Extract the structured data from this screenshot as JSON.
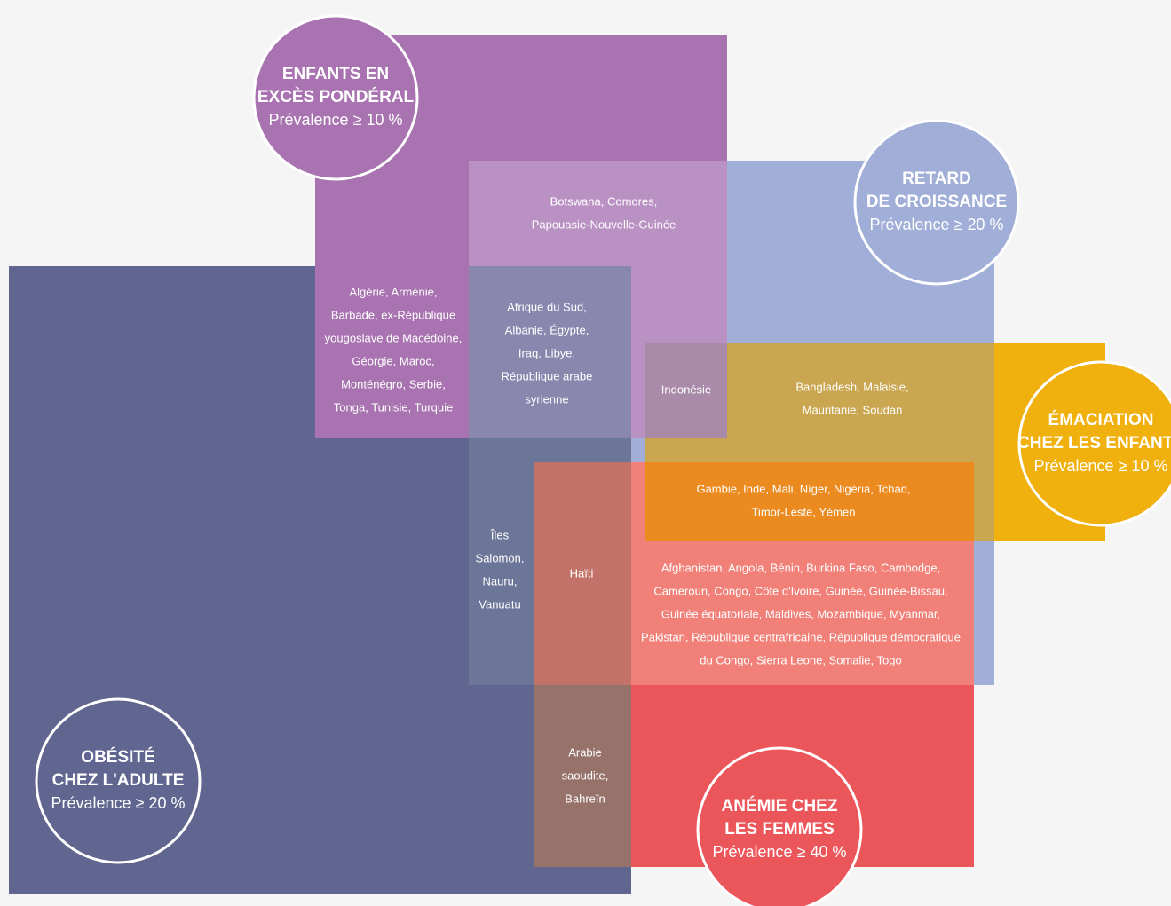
{
  "groups": [
    {
      "title_lines": [
        "ENFANTS EN",
        "EXCÈS PONDÉRAL"
      ],
      "prevalence": "Prévalence ≥ 10 %"
    },
    {
      "title_lines": [
        "RETARD",
        "DE CROISSANCE"
      ],
      "prevalence": "Prévalence ≥ 20 %"
    },
    {
      "title_lines": [
        "ÉMACIATION",
        "CHEZ LES ENFANTS"
      ],
      "prevalence": "Prévalence ≥ 10 %"
    },
    {
      "title_lines": [
        "OBÉSITÉ",
        "CHEZ L'ADULTE"
      ],
      "prevalence": "Prévalence ≥ 20 %"
    },
    {
      "title_lines": [
        "ANÉMIE CHEZ",
        "LES FEMMES"
      ],
      "prevalence": "Prévalence ≥ 40 %"
    }
  ],
  "regions": [
    {
      "lines": [
        "Botswana, Comores,",
        "Papouasie-Nouvelle-Guinée"
      ]
    },
    {
      "lines": [
        "Algérie, Arménie,",
        "Barbade, ex-République",
        "yougoslave de Macédoine,",
        "Géorgie, Maroc,",
        "Monténégro, Serbie,",
        "Tonga, Tunisie, Turquie"
      ]
    },
    {
      "lines": [
        "Afrique du Sud,",
        "Albanie, Égypte,",
        "Iraq, Libye,",
        "République arabe",
        "syrienne"
      ]
    },
    {
      "lines": [
        "Indonésie"
      ]
    },
    {
      "lines": [
        "Bangladesh, Malaisie,",
        "Mauritanie, Soudan"
      ]
    },
    {
      "lines": [
        "Gambie, Inde, Mali, Níger, Nigéria, Tchad,",
        "Timor-Leste, Yémen"
      ]
    },
    {
      "lines": [
        "Îles",
        "Salomon,",
        "Nauru,",
        "Vanuatu"
      ]
    },
    {
      "lines": [
        "Haïti"
      ]
    },
    {
      "lines": [
        "Afghanistan, Angola, Bénin, Burkina Faso, Cambodge,",
        "Cameroun, Congo, Côte d'Ivoire, Guinée,  Guinée-Bissau,",
        "Guinée équatoriale, Maldives, Mozambique, Myanmar,",
        "Pakistan, République centrafricaine, République démocratique",
        "du Congo, Sierra Leone, Somalie, Togo"
      ]
    },
    {
      "lines": [
        "Arabie",
        "saoudite,",
        "Bahreïn"
      ]
    }
  ]
}
